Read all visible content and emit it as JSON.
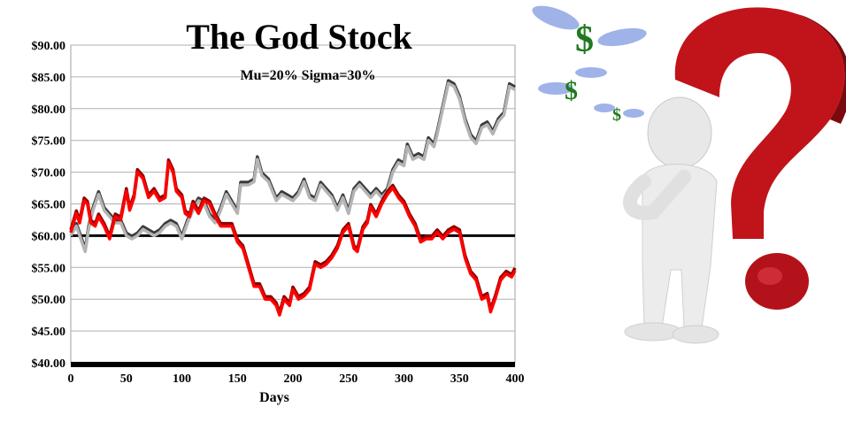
{
  "chart_data": {
    "type": "line",
    "title": "The God Stock",
    "subtitle": "Mu=20% Sigma=30%",
    "xlabel": "Days",
    "ylabel": "",
    "xlim": [
      0,
      400
    ],
    "ylim": [
      40,
      90
    ],
    "xticks": [
      "0",
      "50",
      "100",
      "150",
      "200",
      "250",
      "300",
      "350",
      "400"
    ],
    "yticks": [
      "$40.00",
      "$45.00",
      "$50.00",
      "$55.00",
      "$60.00",
      "$65.00",
      "$70.00",
      "$75.00",
      "$80.00",
      "$85.00",
      "$90.00"
    ],
    "grid": true,
    "reference_line": 60,
    "series": [
      {
        "color": "#b4b4b4",
        "shadow_color": "#3a3a3a",
        "x": [
          0,
          5,
          10,
          13,
          16,
          20,
          25,
          30,
          35,
          40,
          45,
          50,
          55,
          60,
          65,
          70,
          75,
          80,
          85,
          90,
          95,
          100,
          105,
          110,
          115,
          120,
          125,
          130,
          135,
          140,
          145,
          150,
          153,
          160,
          165,
          168,
          172,
          178,
          185,
          190,
          195,
          200,
          205,
          210,
          215,
          220,
          225,
          230,
          235,
          240,
          245,
          250,
          255,
          260,
          265,
          270,
          275,
          280,
          285,
          290,
          295,
          300,
          303,
          308,
          313,
          318,
          322,
          327,
          330,
          335,
          340,
          345,
          350,
          355,
          360,
          365,
          370,
          375,
          380,
          385,
          390,
          395,
          400
        ],
        "y": [
          60,
          61.5,
          59,
          57.5,
          61,
          64,
          66.5,
          64,
          63,
          62,
          62,
          60,
          59.5,
          60,
          61,
          60.5,
          60,
          60.5,
          61.5,
          62,
          61.5,
          59.5,
          62,
          64,
          65.5,
          65,
          63,
          62,
          64,
          66.5,
          65,
          63.5,
          68,
          68,
          68.5,
          72,
          69.5,
          68.5,
          65.5,
          66.5,
          66,
          65.5,
          66.5,
          68.5,
          66,
          65.5,
          68,
          67,
          66,
          64,
          66,
          63.5,
          67,
          68,
          67,
          66,
          67,
          66,
          67,
          70,
          71.5,
          71,
          74,
          72,
          72.5,
          72,
          75,
          74,
          76,
          80,
          84,
          83.5,
          81.5,
          78,
          75.5,
          74.5,
          77,
          77.5,
          76,
          78,
          79,
          83.5,
          83
        ]
      },
      {
        "color": "#ff0000",
        "shadow_color": "#8b0000",
        "x": [
          0,
          5,
          8,
          12,
          15,
          18,
          22,
          25,
          30,
          35,
          40,
          45,
          50,
          53,
          57,
          60,
          65,
          70,
          75,
          80,
          85,
          88,
          92,
          95,
          100,
          103,
          107,
          110,
          115,
          120,
          125,
          130,
          135,
          140,
          145,
          150,
          155,
          160,
          165,
          170,
          175,
          180,
          185,
          188,
          192,
          197,
          200,
          205,
          210,
          215,
          220,
          225,
          230,
          235,
          240,
          245,
          250,
          255,
          258,
          263,
          267,
          270,
          275,
          280,
          285,
          290,
          295,
          300,
          305,
          310,
          315,
          320,
          325,
          330,
          335,
          340,
          345,
          350,
          355,
          360,
          365,
          370,
          375,
          378,
          382,
          387,
          392,
          397,
          400
        ],
        "y": [
          60.5,
          63.5,
          62,
          65.5,
          65,
          62,
          61.5,
          63,
          61.5,
          59.5,
          63,
          62.5,
          67,
          64,
          66,
          70,
          69,
          66,
          67,
          65.5,
          66,
          71.5,
          70,
          67,
          66,
          63.5,
          63,
          65,
          63.5,
          65.5,
          65,
          63,
          61.5,
          61.5,
          61.5,
          59,
          58,
          55,
          52,
          52,
          50,
          50,
          49,
          47.5,
          50,
          49,
          51.5,
          50,
          50.5,
          51.5,
          55.5,
          55,
          55.5,
          56.5,
          58,
          60.5,
          61.5,
          58,
          57.5,
          61,
          62,
          64.5,
          63,
          65,
          66.5,
          67.5,
          66,
          65,
          63,
          61.5,
          59,
          59.5,
          59.5,
          60.5,
          59.5,
          60.5,
          61,
          60.5,
          56.5,
          54,
          53,
          50,
          50.5,
          48,
          50,
          53,
          54,
          53.5,
          54.5
        ]
      }
    ]
  },
  "illustration": {
    "icons": [
      "question-mark-icon",
      "thinking-figure-icon",
      "flying-dollar-icon"
    ],
    "colors": {
      "question_mark": "#c0141a",
      "dollar": "#1f7a1f",
      "wings": "#9fb3e8"
    }
  }
}
